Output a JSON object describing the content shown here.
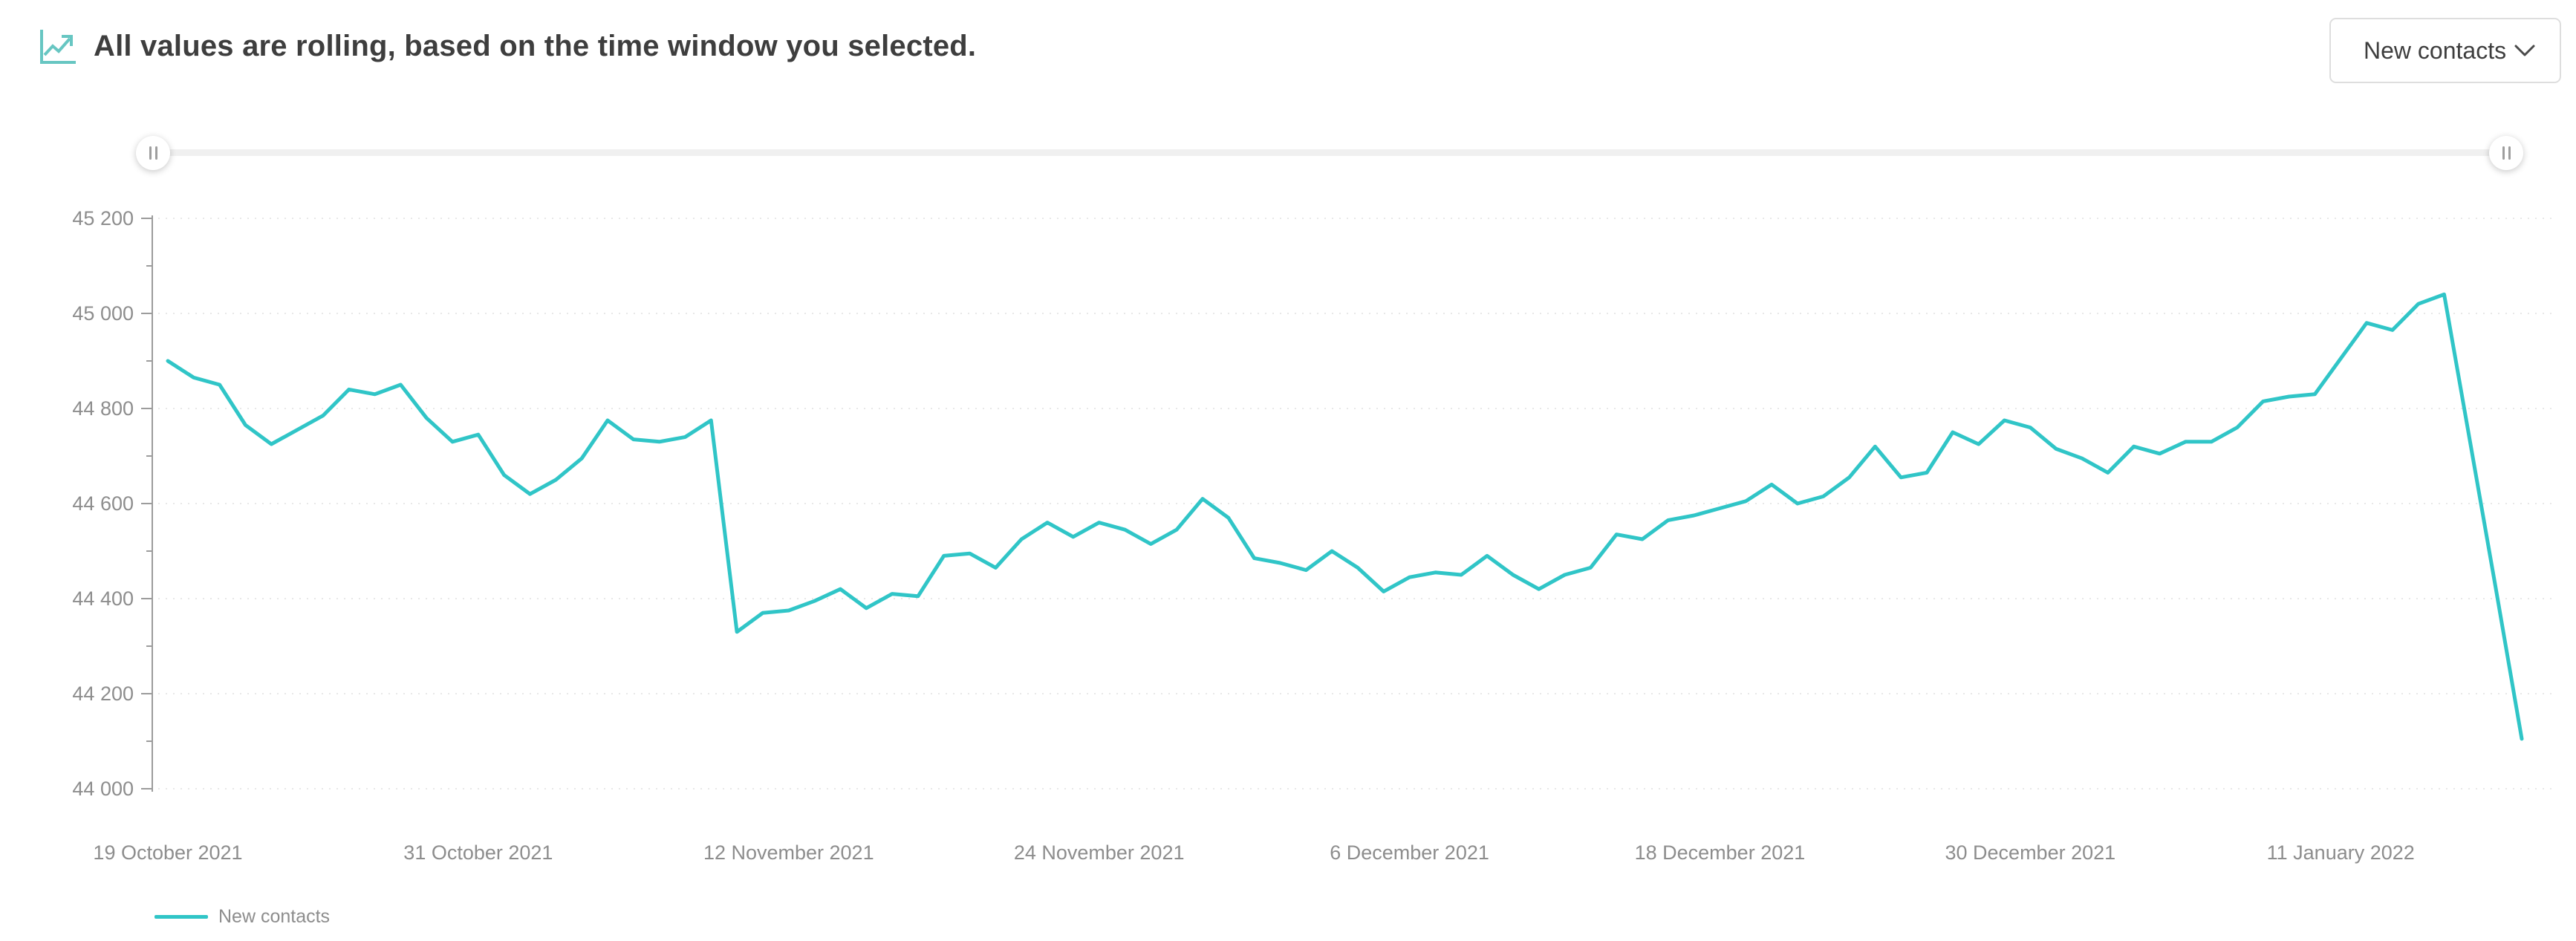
{
  "header": {
    "title": "All values are rolling, based on the time window you selected."
  },
  "metric_dropdown": {
    "value": "New contacts"
  },
  "legend": {
    "label": "New contacts"
  },
  "colors": {
    "series_teal": "#30C5C7",
    "icon_teal": "#67C6C2",
    "title_text": "#3E3E3E",
    "tick_text": "#8D8D8D",
    "axis_line": "#9C9C9C",
    "gridline": "#E8E8E8",
    "slider_track": "#F0F0F0",
    "handle_grip": "#9E9E9E",
    "dropdown_border": "#DEDEDE"
  },
  "chart_data": {
    "type": "line",
    "title": "",
    "xlabel": "",
    "ylabel": "",
    "ylim": [
      44000,
      45200
    ],
    "y_step": 200,
    "y_minor_step": 100,
    "grid": "dotted-horizontal",
    "legend_position": "bottom-left",
    "y_tick_labels": [
      "45 200",
      "45 000",
      "44 800",
      "44 600",
      "44 400",
      "44 200",
      "44 000"
    ],
    "x_tick_labels": [
      "19 October 2021",
      "31 October 2021",
      "12 November 2021",
      "24 November 2021",
      "6 December 2021",
      "18 December 2021",
      "30 December 2021",
      "11 January 2022"
    ],
    "x_tick_indices": [
      0,
      12,
      24,
      36,
      48,
      60,
      72,
      84
    ],
    "x_start_label": "19 October 2021",
    "x_interval": "daily",
    "series": [
      {
        "name": "New contacts",
        "color": "#30C5C7",
        "values": [
          44900,
          44865,
          44850,
          44765,
          44725,
          44755,
          44785,
          44840,
          44830,
          44850,
          44780,
          44730,
          44745,
          44660,
          44620,
          44650,
          44695,
          44775,
          44735,
          44730,
          44740,
          44775,
          44330,
          44370,
          44375,
          44395,
          44420,
          44380,
          44410,
          44405,
          44490,
          44495,
          44465,
          44525,
          44560,
          44530,
          44560,
          44545,
          44515,
          44545,
          44610,
          44570,
          44485,
          44475,
          44460,
          44500,
          44465,
          44415,
          44445,
          44455,
          44450,
          44490,
          44450,
          44420,
          44450,
          44465,
          44535,
          44525,
          44565,
          44575,
          44590,
          44605,
          44640,
          44600,
          44615,
          44655,
          44720,
          44655,
          44665,
          44750,
          44725,
          44775,
          44760,
          44715,
          44695,
          44665,
          44720,
          44705,
          44730,
          44730,
          44760,
          44815,
          44825,
          44830,
          44905,
          44980,
          44965,
          45020,
          45040,
          44730,
          44420,
          44105
        ]
      }
    ]
  }
}
